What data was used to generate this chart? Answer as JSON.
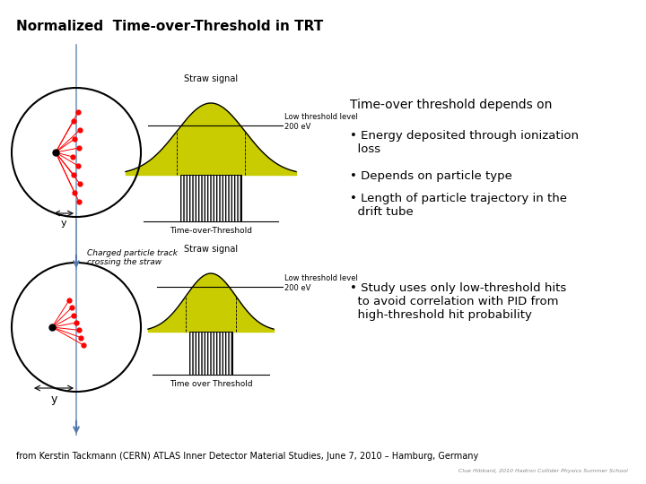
{
  "title": "Normalized  Time-over-Threshold in TRT",
  "bg_color": "#ffffff",
  "text_color": "#000000",
  "title_fontsize": 11,
  "body_fontsize": 9,
  "footer_text": "from Kerstin Tackmann (CERN) ATLAS Inner Detector Material Studies, June 7, 2010 – Hamburg, Germany",
  "watermark": "Clue Hibbard, 2010 Hadron Collider Physics Summer School",
  "right_header": "Time-over threshold depends on",
  "bullet1": "• Energy deposited through ionization\n  loss",
  "bullet2": "• Depends on particle type",
  "bullet3": "• Length of particle trajectory in the\n  drift tube",
  "bullet4": "• Study uses only low-threshold hits\n  to avoid correlation with PID from\n  high-threshold hit probability",
  "label_straw_signal_top": "Straw signal",
  "label_straw_signal_bot": "Straw signal",
  "label_low_thresh_top": "Low threshold level\n200 eV",
  "label_low_thresh_bot": "Low threshold level\n200 eV",
  "label_tot_top": "Time-over-Threshold",
  "label_tot_bot": "Time over Threshold",
  "label_track_top": "Charged particle track\ncrossing the straw",
  "label_y": "y",
  "gauss_color": "#c8cc00"
}
